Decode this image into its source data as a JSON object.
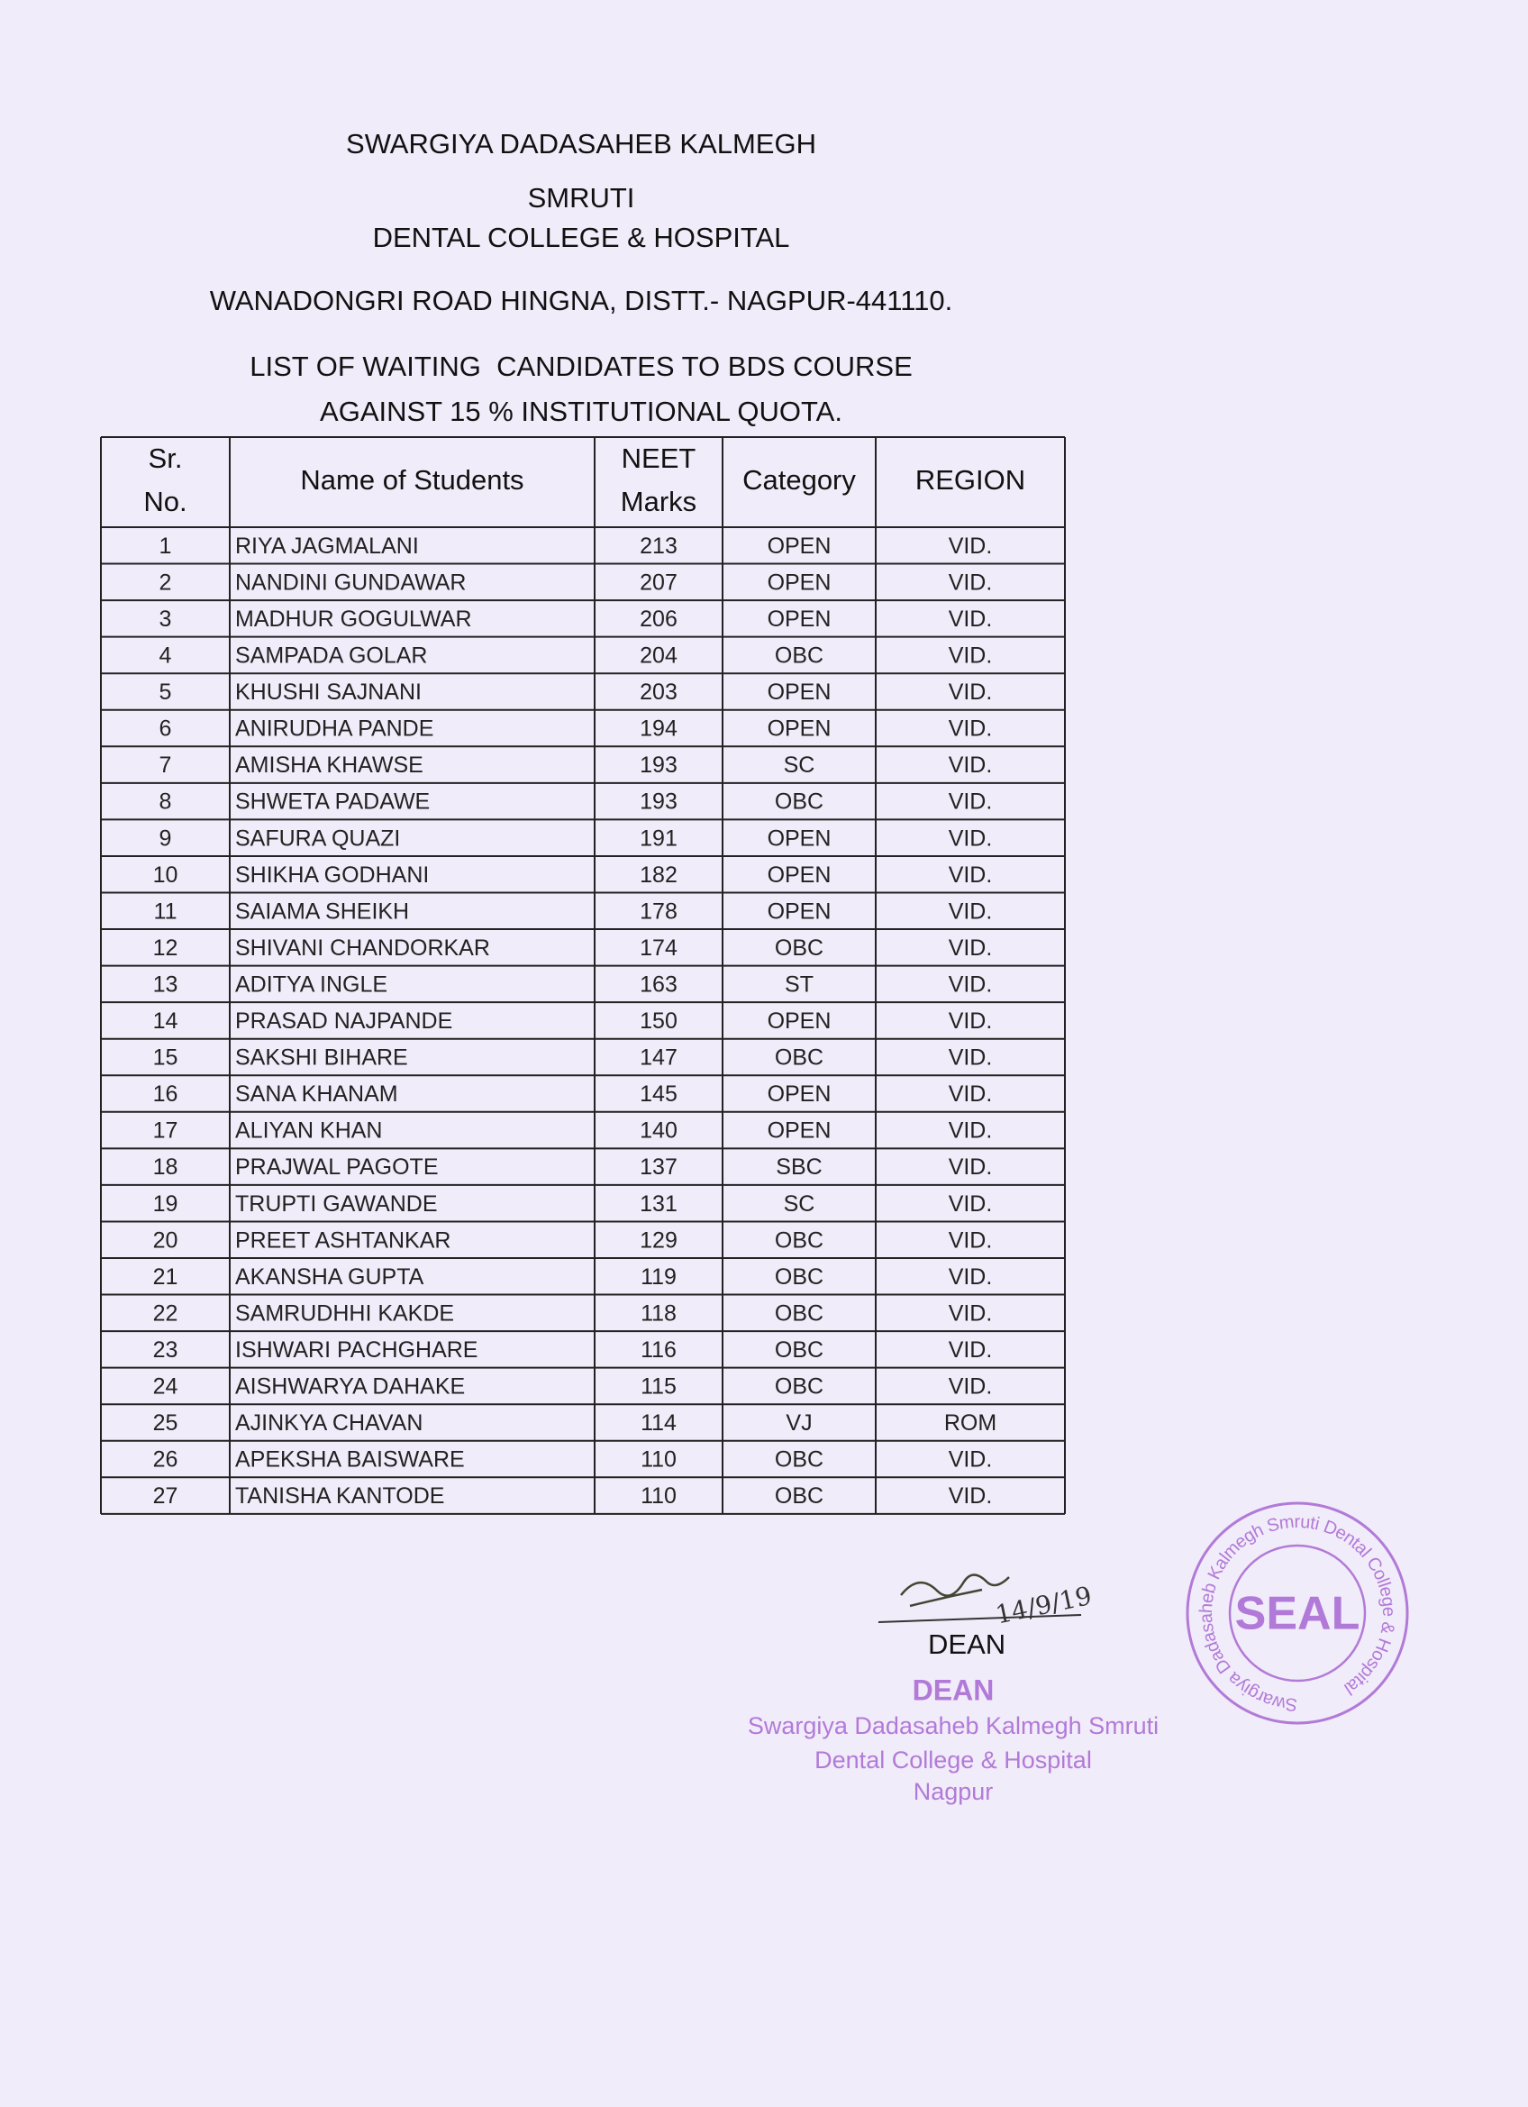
{
  "header": {
    "lines": [
      "SWARGIYA DADASAHEB KALMEGH",
      "SMRUTI",
      "DENTAL COLLEGE & HOSPITAL"
    ],
    "address": "WANADONGRI ROAD HINGNA, DISTT.- NAGPUR-441110.",
    "list_title": [
      "LIST OF WAITING  CANDIDATES TO BDS COURSE",
      "AGAINST 15 % INSTITUTIONAL QUOTA."
    ]
  },
  "table": {
    "columns": [
      [
        "Sr.",
        "No."
      ],
      [
        "Name of Students"
      ],
      [
        "NEET",
        "Marks"
      ],
      [
        "Category"
      ],
      [
        "REGION"
      ]
    ],
    "rows": [
      [
        1,
        "RIYA JAGMALANI",
        213,
        "OPEN",
        "VID."
      ],
      [
        2,
        "NANDINI GUNDAWAR",
        207,
        "OPEN",
        "VID."
      ],
      [
        3,
        "MADHUR GOGULWAR",
        206,
        "OPEN",
        "VID."
      ],
      [
        4,
        "SAMPADA GOLAR",
        204,
        "OBC",
        "VID."
      ],
      [
        5,
        "KHUSHI SAJNANI",
        203,
        "OPEN",
        "VID."
      ],
      [
        6,
        "ANIRUDHA PANDE",
        194,
        "OPEN",
        "VID."
      ],
      [
        7,
        "AMISHA KHAWSE",
        193,
        "SC",
        "VID."
      ],
      [
        8,
        "SHWETA PADAWE",
        193,
        "OBC",
        "VID."
      ],
      [
        9,
        "SAFURA QUAZI",
        191,
        "OPEN",
        "VID."
      ],
      [
        10,
        "SHIKHA GODHANI",
        182,
        "OPEN",
        "VID."
      ],
      [
        11,
        "SAIAMA SHEIKH",
        178,
        "OPEN",
        "VID."
      ],
      [
        12,
        "SHIVANI CHANDORKAR",
        174,
        "OBC",
        "VID."
      ],
      [
        13,
        "ADITYA INGLE",
        163,
        "ST",
        "VID."
      ],
      [
        14,
        "PRASAD NAJPANDE",
        150,
        "OPEN",
        "VID."
      ],
      [
        15,
        "SAKSHI BIHARE",
        147,
        "OBC",
        "VID."
      ],
      [
        16,
        "SANA KHANAM",
        145,
        "OPEN",
        "VID."
      ],
      [
        17,
        "ALIYAN KHAN",
        140,
        "OPEN",
        "VID."
      ],
      [
        18,
        "PRAJWAL PAGOTE",
        137,
        "SBC",
        "VID."
      ],
      [
        19,
        "TRUPTI GAWANDE",
        131,
        "SC",
        "VID."
      ],
      [
        20,
        "PREET ASHTANKAR",
        129,
        "OBC",
        "VID."
      ],
      [
        21,
        "AKANSHA GUPTA",
        119,
        "OBC",
        "VID."
      ],
      [
        22,
        "SAMRUDHHI KAKDE",
        118,
        "OBC",
        "VID."
      ],
      [
        23,
        "ISHWARI PACHGHARE",
        116,
        "OBC",
        "VID."
      ],
      [
        24,
        "AISHWARYA DAHAKE",
        115,
        "OBC",
        "VID."
      ],
      [
        25,
        "AJINKYA CHAVAN",
        114,
        "VJ",
        "ROM"
      ],
      [
        26,
        "APEKSHA BAISWARE",
        110,
        "OBC",
        "VID."
      ],
      [
        27,
        "TANISHA KANTODE",
        110,
        "OBC",
        "VID."
      ]
    ]
  },
  "signature": {
    "date": "14/9/19",
    "title": "DEAN"
  },
  "stamp": {
    "title": "DEAN",
    "lines": [
      "Swargiya Dadasaheb Kalmegh Smruti",
      "Dental College & Hospital",
      "Nagpur"
    ]
  },
  "seal": {
    "center": "SEAL",
    "ring": "Swargiya Dadasaheb Kalmegh Smruti Dental College & Hospital"
  }
}
